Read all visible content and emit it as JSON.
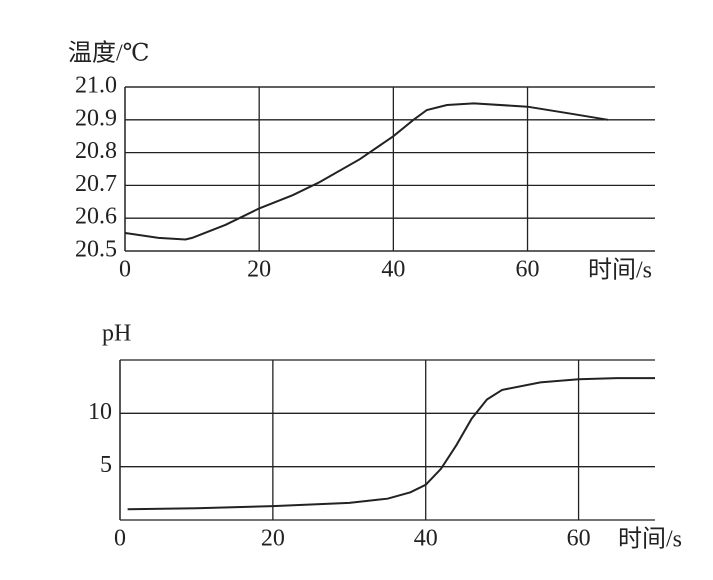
{
  "chart_data": [
    {
      "type": "line",
      "ylabel": "温度/℃",
      "xlabel": "时间/s",
      "x": [
        0,
        5,
        9,
        10,
        15,
        20,
        25,
        29,
        35,
        40,
        43,
        45,
        48,
        52,
        60,
        66,
        72
      ],
      "series": [
        {
          "color": "#222222",
          "values": [
            20.555,
            20.54,
            20.535,
            20.54,
            20.58,
            20.63,
            20.67,
            20.71,
            20.78,
            20.85,
            20.9,
            20.93,
            20.945,
            20.95,
            20.94,
            20.92,
            20.9
          ]
        }
      ],
      "xlim": [
        0,
        79
      ],
      "xticks": [
        0,
        20,
        40,
        60
      ],
      "ylim": [
        20.5,
        21
      ],
      "yticks": [
        {
          "value": 20.5,
          "label": "20.5"
        },
        20.6,
        20.7,
        20.8,
        20.9,
        {
          "value": 21,
          "label": "21.0"
        }
      ],
      "grid": true
    },
    {
      "type": "line",
      "ylabel": "pH",
      "xlabel": "时间/s",
      "x": [
        1,
        10,
        20,
        30,
        35,
        38,
        40,
        42,
        44,
        46,
        48,
        50,
        55,
        60,
        65,
        70
      ],
      "series": [
        {
          "color": "#222222",
          "values": [
            1.0,
            1.1,
            1.3,
            1.6,
            2.0,
            2.6,
            3.3,
            4.8,
            7,
            9.5,
            11.3,
            12.2,
            12.9,
            13.2,
            13.3,
            13.3
          ]
        }
      ],
      "xlim": [
        0,
        70
      ],
      "xticks": [
        0,
        20,
        40,
        60
      ],
      "ylim": [
        0,
        15
      ],
      "yticks": [
        5,
        10
      ],
      "grid": true
    }
  ]
}
